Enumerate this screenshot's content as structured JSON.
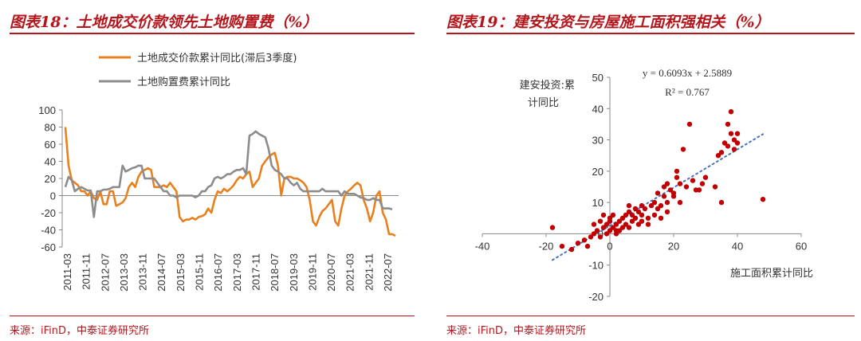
{
  "panel1": {
    "title": "图表18：土地成交价款领先土地购置费（%）",
    "source": "来源：iFinD，中泰证券研究所"
  },
  "panel2": {
    "title": "图表19：建安投资与房屋施工面积强相关（%）",
    "source": "来源：iFinD，中泰证券研究所"
  },
  "colors": {
    "orange": "#e8801e",
    "gray": "#8c8c8c",
    "scatter": "#c00000",
    "trend": "#4472c4",
    "accent": "#b5161c"
  },
  "chart_data": [
    {
      "type": "line",
      "yticks": [
        100,
        80,
        60,
        40,
        20,
        0,
        -20,
        -40,
        -60
      ],
      "ylim": [
        -60,
        100
      ],
      "xticks": [
        "2011-03",
        "2011-11",
        "2012-07",
        "2013-03",
        "2013-11",
        "2014-07",
        "2015-03",
        "2015-11",
        "2016-07",
        "2017-03",
        "2017-11",
        "2018-07",
        "2019-03",
        "2019-11",
        "2020-07",
        "2021-03",
        "2021-11",
        "2022-07"
      ],
      "series": [
        {
          "name": "土地成交价款累计同比(滞后3季度)",
          "color": "#e8801e",
          "values": [
            80,
            35,
            18,
            15,
            12,
            5,
            5,
            0,
            5,
            -3,
            -5,
            5,
            -10,
            -10,
            5,
            5,
            -12,
            -10,
            -8,
            -3,
            10,
            15,
            10,
            22,
            28,
            30,
            32,
            30,
            10,
            10,
            10,
            12,
            10,
            15,
            10,
            5,
            -25,
            -30,
            -28,
            -28,
            -26,
            -28,
            -25,
            -24,
            -22,
            -15,
            -20,
            -5,
            5,
            3,
            8,
            5,
            8,
            12,
            18,
            22,
            20,
            25,
            28,
            10,
            15,
            20,
            35,
            40,
            45,
            48,
            50,
            35,
            0,
            20,
            22,
            22,
            20,
            20,
            18,
            15,
            10,
            -5,
            -30,
            -35,
            -25,
            -18,
            -15,
            -10,
            -5,
            -30,
            -35,
            -15,
            0,
            5,
            8,
            12,
            15,
            12,
            -5,
            -15,
            -30,
            -20,
            0,
            5,
            -20,
            -28,
            -45,
            -45,
            -47
          ]
        },
        {
          "name": "土地购置费累计同比",
          "color": "#8c8c8c",
          "values": [
            10,
            22,
            18,
            5,
            8,
            10,
            8,
            6,
            6,
            -25,
            5,
            5,
            7,
            7,
            8,
            10,
            10,
            10,
            35,
            28,
            30,
            32,
            33,
            35,
            35,
            20,
            20,
            20,
            20,
            15,
            10,
            5,
            5,
            0,
            0,
            -2,
            0,
            0,
            0,
            0,
            0,
            -2,
            0,
            5,
            5,
            10,
            12,
            20,
            22,
            20,
            22,
            25,
            25,
            28,
            30,
            30,
            32,
            25,
            70,
            72,
            75,
            72,
            70,
            68,
            55,
            35,
            30,
            28,
            25,
            20,
            20,
            15,
            12,
            15,
            8,
            5,
            5,
            5,
            5,
            5,
            5,
            8,
            5,
            5,
            5,
            5,
            5,
            0,
            5,
            2,
            2,
            2,
            0,
            -2,
            -3,
            -5,
            -5,
            -3,
            -5,
            -5,
            -15,
            -15,
            -15,
            -16
          ]
        }
      ]
    },
    {
      "type": "scatter",
      "xlabel": "施工面积累计同比",
      "ylabel": "建安投资:累计同比",
      "xlim": [
        -40,
        60
      ],
      "ylim": [
        -20,
        50
      ],
      "xticks": [
        -40,
        -20,
        0,
        20,
        40,
        60
      ],
      "yticks": [
        50,
        40,
        30,
        20,
        10,
        0,
        -10,
        -20
      ],
      "equation": "y = 0.6093x + 2.5889",
      "r2": "R² = 0.767",
      "trend": {
        "slope": 0.6093,
        "intercept": 2.5889,
        "xrange": [
          -18,
          48
        ]
      },
      "points": [
        [
          -18,
          2
        ],
        [
          -15,
          -4
        ],
        [
          -12,
          -5
        ],
        [
          -10,
          -3
        ],
        [
          -8,
          -2
        ],
        [
          -7,
          -4
        ],
        [
          -6,
          -1
        ],
        [
          -5,
          0
        ],
        [
          -5,
          3
        ],
        [
          -4,
          1
        ],
        [
          -3,
          -1
        ],
        [
          -3,
          4
        ],
        [
          -2,
          2
        ],
        [
          -2,
          6
        ],
        [
          -1,
          3
        ],
        [
          -1,
          0
        ],
        [
          0,
          1
        ],
        [
          0,
          4
        ],
        [
          0,
          5
        ],
        [
          1,
          2
        ],
        [
          1,
          6
        ],
        [
          2,
          3
        ],
        [
          2,
          0
        ],
        [
          2,
          1
        ],
        [
          3,
          4
        ],
        [
          3,
          1
        ],
        [
          4,
          2
        ],
        [
          4,
          5
        ],
        [
          5,
          6
        ],
        [
          5,
          3
        ],
        [
          6,
          2
        ],
        [
          6,
          7
        ],
        [
          6,
          9
        ],
        [
          7,
          4
        ],
        [
          7,
          6
        ],
        [
          8,
          5
        ],
        [
          8,
          8
        ],
        [
          9,
          3
        ],
        [
          9,
          7
        ],
        [
          10,
          4
        ],
        [
          10,
          6
        ],
        [
          10,
          9
        ],
        [
          11,
          8
        ],
        [
          12,
          5
        ],
        [
          12,
          3
        ],
        [
          13,
          9
        ],
        [
          14,
          6
        ],
        [
          14,
          10
        ],
        [
          15,
          13
        ],
        [
          15,
          8
        ],
        [
          16,
          5
        ],
        [
          16,
          9
        ],
        [
          17,
          12
        ],
        [
          17,
          15
        ],
        [
          18,
          7
        ],
        [
          18,
          10
        ],
        [
          18,
          16
        ],
        [
          19,
          14
        ],
        [
          20,
          12
        ],
        [
          20,
          13
        ],
        [
          21,
          18
        ],
        [
          21,
          20
        ],
        [
          22,
          16
        ],
        [
          22,
          10
        ],
        [
          23,
          27
        ],
        [
          24,
          15
        ],
        [
          25,
          35
        ],
        [
          26,
          17
        ],
        [
          27,
          14
        ],
        [
          28,
          14
        ],
        [
          29,
          16
        ],
        [
          30,
          18
        ],
        [
          33,
          15
        ],
        [
          34,
          25
        ],
        [
          35,
          26
        ],
        [
          35,
          10
        ],
        [
          36,
          29
        ],
        [
          37,
          28
        ],
        [
          37,
          35
        ],
        [
          38,
          32
        ],
        [
          38,
          39
        ],
        [
          39,
          30
        ],
        [
          39,
          27
        ],
        [
          40,
          32
        ],
        [
          40,
          29
        ],
        [
          48,
          11
        ]
      ]
    }
  ]
}
